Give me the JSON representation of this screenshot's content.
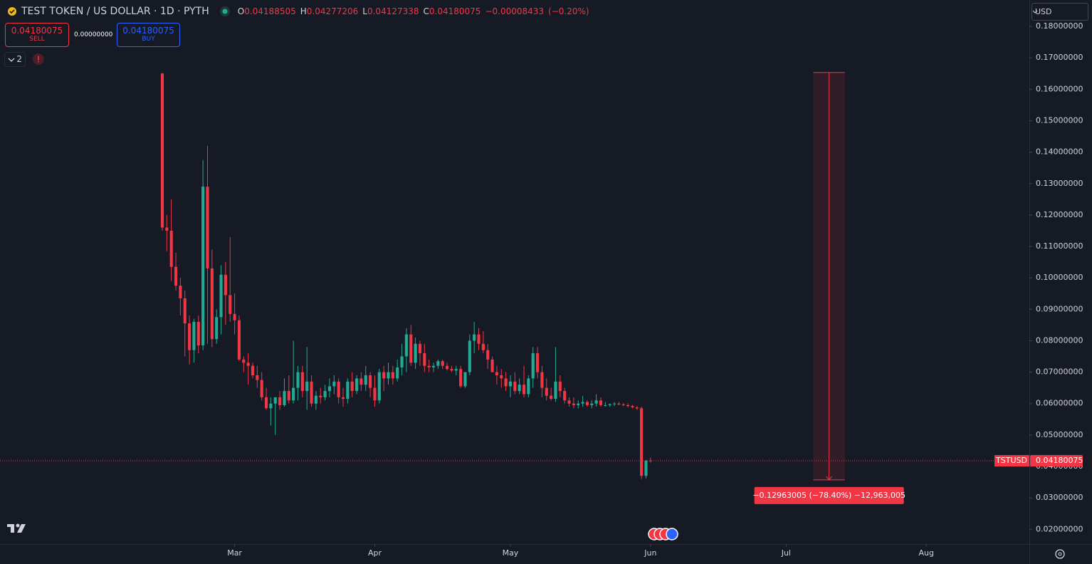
{
  "header": {
    "title": "TEST TOKEN / US DOLLAR · 1D · PYTH",
    "ohlc_letters": [
      "O",
      "H",
      "L",
      "C"
    ],
    "change": "−0.00008433",
    "change_pct": "(−0.20%)"
  },
  "trade_panel": {
    "sell": "SELL",
    "spread": "0.00000000",
    "buy": "BUY"
  },
  "indicators_count": "2",
  "currency": "USD",
  "chart_data": {
    "type": "candlestick",
    "symbol": "TSTUSD",
    "up_color": "#22ab94",
    "down_color": "#f23645",
    "xlim": [
      -35.9,
      191.8
    ],
    "ylim": [
      0.0153,
      0.1884
    ],
    "xticks": [
      {
        "value": 16,
        "label": "Mar"
      },
      {
        "value": 47,
        "label": "Apr"
      },
      {
        "value": 77,
        "label": "May"
      },
      {
        "value": 108,
        "label": "Jun"
      },
      {
        "value": 138,
        "label": "Jul"
      },
      {
        "value": 169,
        "label": "Aug"
      }
    ],
    "yticks": [
      {
        "value": 0.02,
        "label": "0.02000000"
      },
      {
        "value": 0.03,
        "label": "0.03000000"
      },
      {
        "value": 0.04,
        "label": "0.04000000"
      },
      {
        "value": 0.05,
        "label": "0.05000000"
      },
      {
        "value": 0.06,
        "label": "0.06000000"
      },
      {
        "value": 0.07,
        "label": "0.07000000"
      },
      {
        "value": 0.08,
        "label": "0.08000000"
      },
      {
        "value": 0.09,
        "label": "0.09000000"
      },
      {
        "value": 0.1,
        "label": "0.10000000"
      },
      {
        "value": 0.11,
        "label": "0.11000000"
      },
      {
        "value": 0.12,
        "label": "0.12000000"
      },
      {
        "value": 0.13,
        "label": "0.13000000"
      },
      {
        "value": 0.14,
        "label": "0.14000000"
      },
      {
        "value": 0.15,
        "label": "0.15000000"
      },
      {
        "value": 0.16,
        "label": "0.16000000"
      },
      {
        "value": 0.17,
        "label": "0.17000000"
      },
      {
        "value": 0.18,
        "label": "0.18000000"
      }
    ],
    "open": [
      0.165,
      0.116,
      0.115,
      0.1035,
      0.0975,
      0.0935,
      0.0855,
      0.077,
      0.086,
      0.0785,
      0.129,
      0.103,
      0.0805,
      0.0875,
      0.101,
      0.0945,
      0.0885,
      0.0865,
      0.074,
      0.073,
      0.072,
      0.069,
      0.0675,
      0.062,
      0.0585,
      0.06,
      0.062,
      0.0595,
      0.064,
      0.061,
      0.065,
      0.07,
      0.064,
      0.067,
      0.06,
      0.0625,
      0.062,
      0.064,
      0.0655,
      0.067,
      0.062,
      0.0615,
      0.067,
      0.064,
      0.068,
      0.066,
      0.069,
      0.065,
      0.061,
      0.07,
      0.068,
      0.07,
      0.068,
      0.0715,
      0.075,
      0.082,
      0.073,
      0.079,
      0.076,
      0.072,
      0.0715,
      0.072,
      0.0735,
      0.072,
      0.071,
      0.0705,
      0.071,
      0.0655,
      0.07,
      0.08,
      0.082,
      0.079,
      0.077,
      0.074,
      0.07,
      0.069,
      0.068,
      0.0655,
      0.067,
      0.064,
      0.066,
      0.063,
      0.068,
      0.076,
      0.07,
      0.065,
      0.0625,
      0.0615,
      0.067,
      0.064,
      0.061,
      0.06,
      0.0595,
      0.06,
      0.0605,
      0.0595,
      0.06,
      0.061,
      0.0595,
      0.0595,
      0.0598,
      0.06,
      0.0597,
      0.0595,
      0.0592,
      0.0588,
      0.0585,
      0.037,
      0.04188505
    ],
    "high": [
      0.1652,
      0.12,
      0.125,
      0.108,
      0.1,
      0.096,
      0.088,
      0.087,
      0.088,
      0.1375,
      0.142,
      0.109,
      0.09,
      0.104,
      0.105,
      0.113,
      0.095,
      0.088,
      0.075,
      0.076,
      0.073,
      0.072,
      0.07,
      0.065,
      0.062,
      0.062,
      0.064,
      0.068,
      0.069,
      0.08,
      0.072,
      0.072,
      0.078,
      0.069,
      0.064,
      0.065,
      0.066,
      0.068,
      0.069,
      0.068,
      0.065,
      0.068,
      0.07,
      0.069,
      0.07,
      0.072,
      0.07,
      0.069,
      0.071,
      0.072,
      0.073,
      0.072,
      0.074,
      0.079,
      0.084,
      0.085,
      0.081,
      0.08,
      0.079,
      0.074,
      0.073,
      0.074,
      0.074,
      0.073,
      0.072,
      0.072,
      0.072,
      0.07,
      0.082,
      0.086,
      0.084,
      0.083,
      0.079,
      0.075,
      0.072,
      0.071,
      0.07,
      0.069,
      0.07,
      0.068,
      0.072,
      0.069,
      0.078,
      0.078,
      0.072,
      0.068,
      0.065,
      0.078,
      0.069,
      0.065,
      0.062,
      0.062,
      0.061,
      0.0625,
      0.061,
      0.061,
      0.063,
      0.062,
      0.0605,
      0.06,
      0.0605,
      0.0605,
      0.0602,
      0.06,
      0.0596,
      0.0592,
      0.059,
      0.042,
      0.04277206
    ],
    "low": [
      0.115,
      0.1085,
      0.099,
      0.096,
      0.088,
      0.075,
      0.0725,
      0.073,
      0.076,
      0.077,
      0.079,
      0.078,
      0.079,
      0.082,
      0.085,
      0.086,
      0.082,
      0.0735,
      0.07,
      0.066,
      0.068,
      0.065,
      0.061,
      0.058,
      0.053,
      0.05,
      0.058,
      0.059,
      0.06,
      0.06,
      0.061,
      0.062,
      0.058,
      0.059,
      0.058,
      0.06,
      0.061,
      0.062,
      0.063,
      0.06,
      0.059,
      0.06,
      0.062,
      0.063,
      0.064,
      0.064,
      0.062,
      0.059,
      0.06,
      0.064,
      0.066,
      0.066,
      0.067,
      0.069,
      0.07,
      0.072,
      0.071,
      0.072,
      0.07,
      0.07,
      0.07,
      0.071,
      0.071,
      0.0705,
      0.07,
      0.069,
      0.065,
      0.065,
      0.069,
      0.076,
      0.077,
      0.076,
      0.071,
      0.07,
      0.066,
      0.065,
      0.064,
      0.062,
      0.063,
      0.063,
      0.062,
      0.062,
      0.065,
      0.068,
      0.062,
      0.061,
      0.061,
      0.0605,
      0.062,
      0.06,
      0.059,
      0.0585,
      0.0585,
      0.059,
      0.059,
      0.0585,
      0.059,
      0.059,
      0.059,
      0.059,
      0.0592,
      0.0595,
      0.0592,
      0.0588,
      0.0585,
      0.058,
      0.036,
      0.0362,
      0.04127338
    ],
    "close": [
      0.116,
      0.115,
      0.1035,
      0.0975,
      0.0935,
      0.0855,
      0.077,
      0.086,
      0.0785,
      0.129,
      0.103,
      0.0805,
      0.0875,
      0.101,
      0.0945,
      0.0885,
      0.0865,
      0.074,
      0.073,
      0.072,
      0.069,
      0.0675,
      0.062,
      0.0585,
      0.06,
      0.062,
      0.0595,
      0.064,
      0.061,
      0.065,
      0.07,
      0.064,
      0.067,
      0.06,
      0.0625,
      0.062,
      0.064,
      0.0655,
      0.067,
      0.062,
      0.0615,
      0.067,
      0.064,
      0.068,
      0.066,
      0.069,
      0.065,
      0.061,
      0.07,
      0.068,
      0.07,
      0.068,
      0.0715,
      0.075,
      0.082,
      0.073,
      0.079,
      0.076,
      0.072,
      0.0715,
      0.072,
      0.0735,
      0.072,
      0.071,
      0.0705,
      0.071,
      0.0655,
      0.07,
      0.08,
      0.082,
      0.079,
      0.077,
      0.074,
      0.07,
      0.069,
      0.068,
      0.0655,
      0.067,
      0.064,
      0.066,
      0.063,
      0.068,
      0.076,
      0.07,
      0.065,
      0.0625,
      0.0615,
      0.067,
      0.064,
      0.061,
      0.06,
      0.0595,
      0.06,
      0.0605,
      0.0595,
      0.06,
      0.061,
      0.0595,
      0.0595,
      0.0598,
      0.06,
      0.0597,
      0.0595,
      0.0592,
      0.0588,
      0.0585,
      0.037,
      0.0419,
      0.04180075
    ],
    "measure": {
      "x": [
        144,
        151
      ],
      "y": [
        0.16534,
        0.03571
      ],
      "label": "−0.12963005 (−78.40%) −12,963,005"
    }
  }
}
